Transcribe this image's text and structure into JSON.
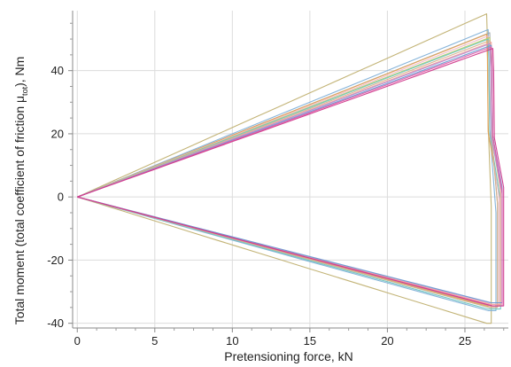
{
  "chart_data": {
    "type": "line",
    "xlabel": "Pretensioning force, kN",
    "ylabel_parts": {
      "before": "Total moment (total coefficient of friction μ",
      "subscript": "tot",
      "after": "), Nm"
    },
    "xlim": [
      -0.3,
      27.8
    ],
    "ylim": [
      -41.5,
      59
    ],
    "xticks": [
      0,
      5,
      10,
      15,
      20,
      25
    ],
    "yticks": [
      -40,
      -20,
      0,
      20,
      40
    ],
    "x_minor_step": 1.25,
    "y_minor_step": 5,
    "grid": true,
    "series": [
      {
        "color": "#c0b070",
        "peak_x": 26.4,
        "peak_y": 58.0,
        "drop_x": 26.7,
        "low_y": -40.0,
        "end_x": 26.4,
        "mid_y": -21.5,
        "return_y": -3
      },
      {
        "color": "#7fb0d8",
        "peak_x": 26.5,
        "peak_y": 53.0,
        "drop_x": 27.0,
        "low_y": -36.0,
        "end_x": 26.5,
        "mid_y": -22.0,
        "return_y": -5
      },
      {
        "color": "#9ea7ad",
        "peak_x": 26.6,
        "peak_y": 52.0,
        "drop_x": 27.1,
        "low_y": -35.0,
        "end_x": 26.6,
        "mid_y": -21.0,
        "return_y": -2
      },
      {
        "color": "#e8a050",
        "peak_x": 26.4,
        "peak_y": 51.5,
        "drop_x": 27.2,
        "low_y": -34.5,
        "end_x": 26.4,
        "mid_y": -20.0,
        "return_y": 1
      },
      {
        "color": "#f0b8c8",
        "peak_x": 26.5,
        "peak_y": 51.0,
        "drop_x": 27.2,
        "low_y": -34.0,
        "end_x": 26.5,
        "mid_y": -19.5,
        "return_y": 0
      },
      {
        "color": "#bcd06a",
        "peak_x": 26.6,
        "peak_y": 50.5,
        "drop_x": 27.3,
        "low_y": -34.5,
        "end_x": 26.6,
        "mid_y": -19.5,
        "return_y": 2
      },
      {
        "color": "#6fc6c0",
        "peak_x": 26.5,
        "peak_y": 50.0,
        "drop_x": 27.3,
        "low_y": -35.5,
        "end_x": 26.5,
        "mid_y": -21.0,
        "return_y": -1
      },
      {
        "color": "#d9b08c",
        "peak_x": 26.6,
        "peak_y": 49.5,
        "drop_x": 27.1,
        "low_y": -35.0,
        "end_x": 26.6,
        "mid_y": -20.5,
        "return_y": -2
      },
      {
        "color": "#f4a09a",
        "peak_x": 26.7,
        "peak_y": 49.0,
        "drop_x": 27.3,
        "low_y": -34.0,
        "end_x": 26.7,
        "mid_y": -19.0,
        "return_y": 2
      },
      {
        "color": "#b48fd6",
        "peak_x": 26.6,
        "peak_y": 48.5,
        "drop_x": 27.4,
        "low_y": -33.5,
        "end_x": 26.6,
        "mid_y": -19.5,
        "return_y": 1
      },
      {
        "color": "#6f9bd0",
        "peak_x": 26.7,
        "peak_y": 48.0,
        "drop_x": 27.4,
        "low_y": -33.5,
        "end_x": 26.7,
        "mid_y": -19.0,
        "return_y": 3
      },
      {
        "color": "#e05aa8",
        "peak_x": 26.7,
        "peak_y": 47.5,
        "drop_x": 27.4,
        "low_y": -34.5,
        "end_x": 26.7,
        "mid_y": -19.5,
        "return_y": 2
      },
      {
        "color": "#d03a8c",
        "peak_x": 26.8,
        "peak_y": 47.0,
        "drop_x": 27.5,
        "low_y": -34.5,
        "end_x": 26.8,
        "mid_y": -19.0,
        "return_y": 3
      }
    ]
  }
}
